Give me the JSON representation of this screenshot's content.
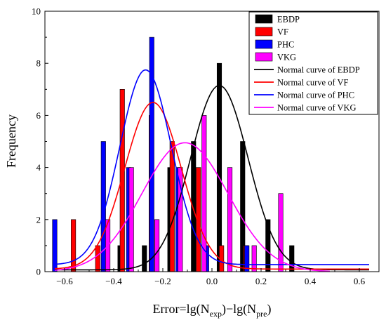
{
  "chart_data": {
    "type": "bar",
    "title": "",
    "xlabel": {
      "base": "Error=lg(N",
      "sub1": "exp",
      "mid": ")−lg(N",
      "sub2": "pre",
      "end": ")"
    },
    "ylabel": "Frequency",
    "xlim": [
      -0.68,
      0.68
    ],
    "ylim": [
      0,
      10
    ],
    "xticks": [
      -0.6,
      -0.4,
      -0.2,
      0.0,
      0.2,
      0.4,
      0.6
    ],
    "xtick_labels": [
      "−0.6",
      "−0.4",
      "−0.2",
      "0.0",
      "0.2",
      "0.4",
      "0.6"
    ],
    "yticks": [
      0,
      2,
      4,
      6,
      8,
      10
    ],
    "ytick_labels": [
      "0",
      "2",
      "4",
      "6",
      "8",
      "10"
    ],
    "legend_position": "top-right",
    "series": [
      {
        "name": "EBDP",
        "color": "#000000",
        "x": [
          -0.374,
          -0.275,
          -0.171,
          -0.075,
          0.03,
          0.125,
          0.228,
          0.325
        ],
        "values": [
          1,
          1,
          4,
          5,
          8,
          5,
          2,
          1
        ]
      },
      {
        "name": "VF",
        "color": "#ff0000",
        "x": [
          -0.564,
          -0.465,
          -0.365,
          -0.247,
          -0.162,
          -0.055,
          0.039,
          0.138
        ],
        "values": [
          2,
          1,
          7,
          6,
          5,
          4,
          1,
          1
        ]
      },
      {
        "name": "PHC",
        "color": "#0000ff",
        "x": [
          -0.64,
          -0.442,
          -0.339,
          -0.245,
          -0.138,
          -0.022,
          0.142
        ],
        "values": [
          2,
          5,
          4,
          9,
          4,
          1,
          1
        ]
      },
      {
        "name": "VKG",
        "color": "#ff00ff",
        "x": [
          -0.424,
          -0.328,
          -0.224,
          -0.129,
          -0.032,
          0.073,
          0.172,
          0.28
        ],
        "values": [
          2,
          4,
          2,
          4,
          6,
          4,
          1,
          3
        ]
      }
    ],
    "normal_curves": [
      {
        "name": "Normal curve of EBDP",
        "color": "#000000",
        "mean": 0.03,
        "peak": 7.15,
        "sd": 0.117,
        "baseline": 0.07,
        "x_range": [
          -0.64,
          0.64
        ]
      },
      {
        "name": "Normal curve of VF",
        "color": "#ff0000",
        "mean": -0.24,
        "peak": 6.5,
        "sd": 0.115,
        "baseline": 0.1,
        "x_range": [
          -0.64,
          0.64
        ]
      },
      {
        "name": "Normal curve of PHC",
        "color": "#0000ff",
        "mean": -0.27,
        "peak": 7.75,
        "sd": 0.105,
        "baseline": 0.27,
        "x_range": [
          -0.64,
          0.64
        ]
      },
      {
        "name": "Normal curve of VKG",
        "color": "#ff00ff",
        "mean": -0.11,
        "peak": 4.95,
        "sd": 0.175,
        "baseline": 0.0,
        "x_range": [
          -0.64,
          0.48
        ]
      }
    ]
  }
}
